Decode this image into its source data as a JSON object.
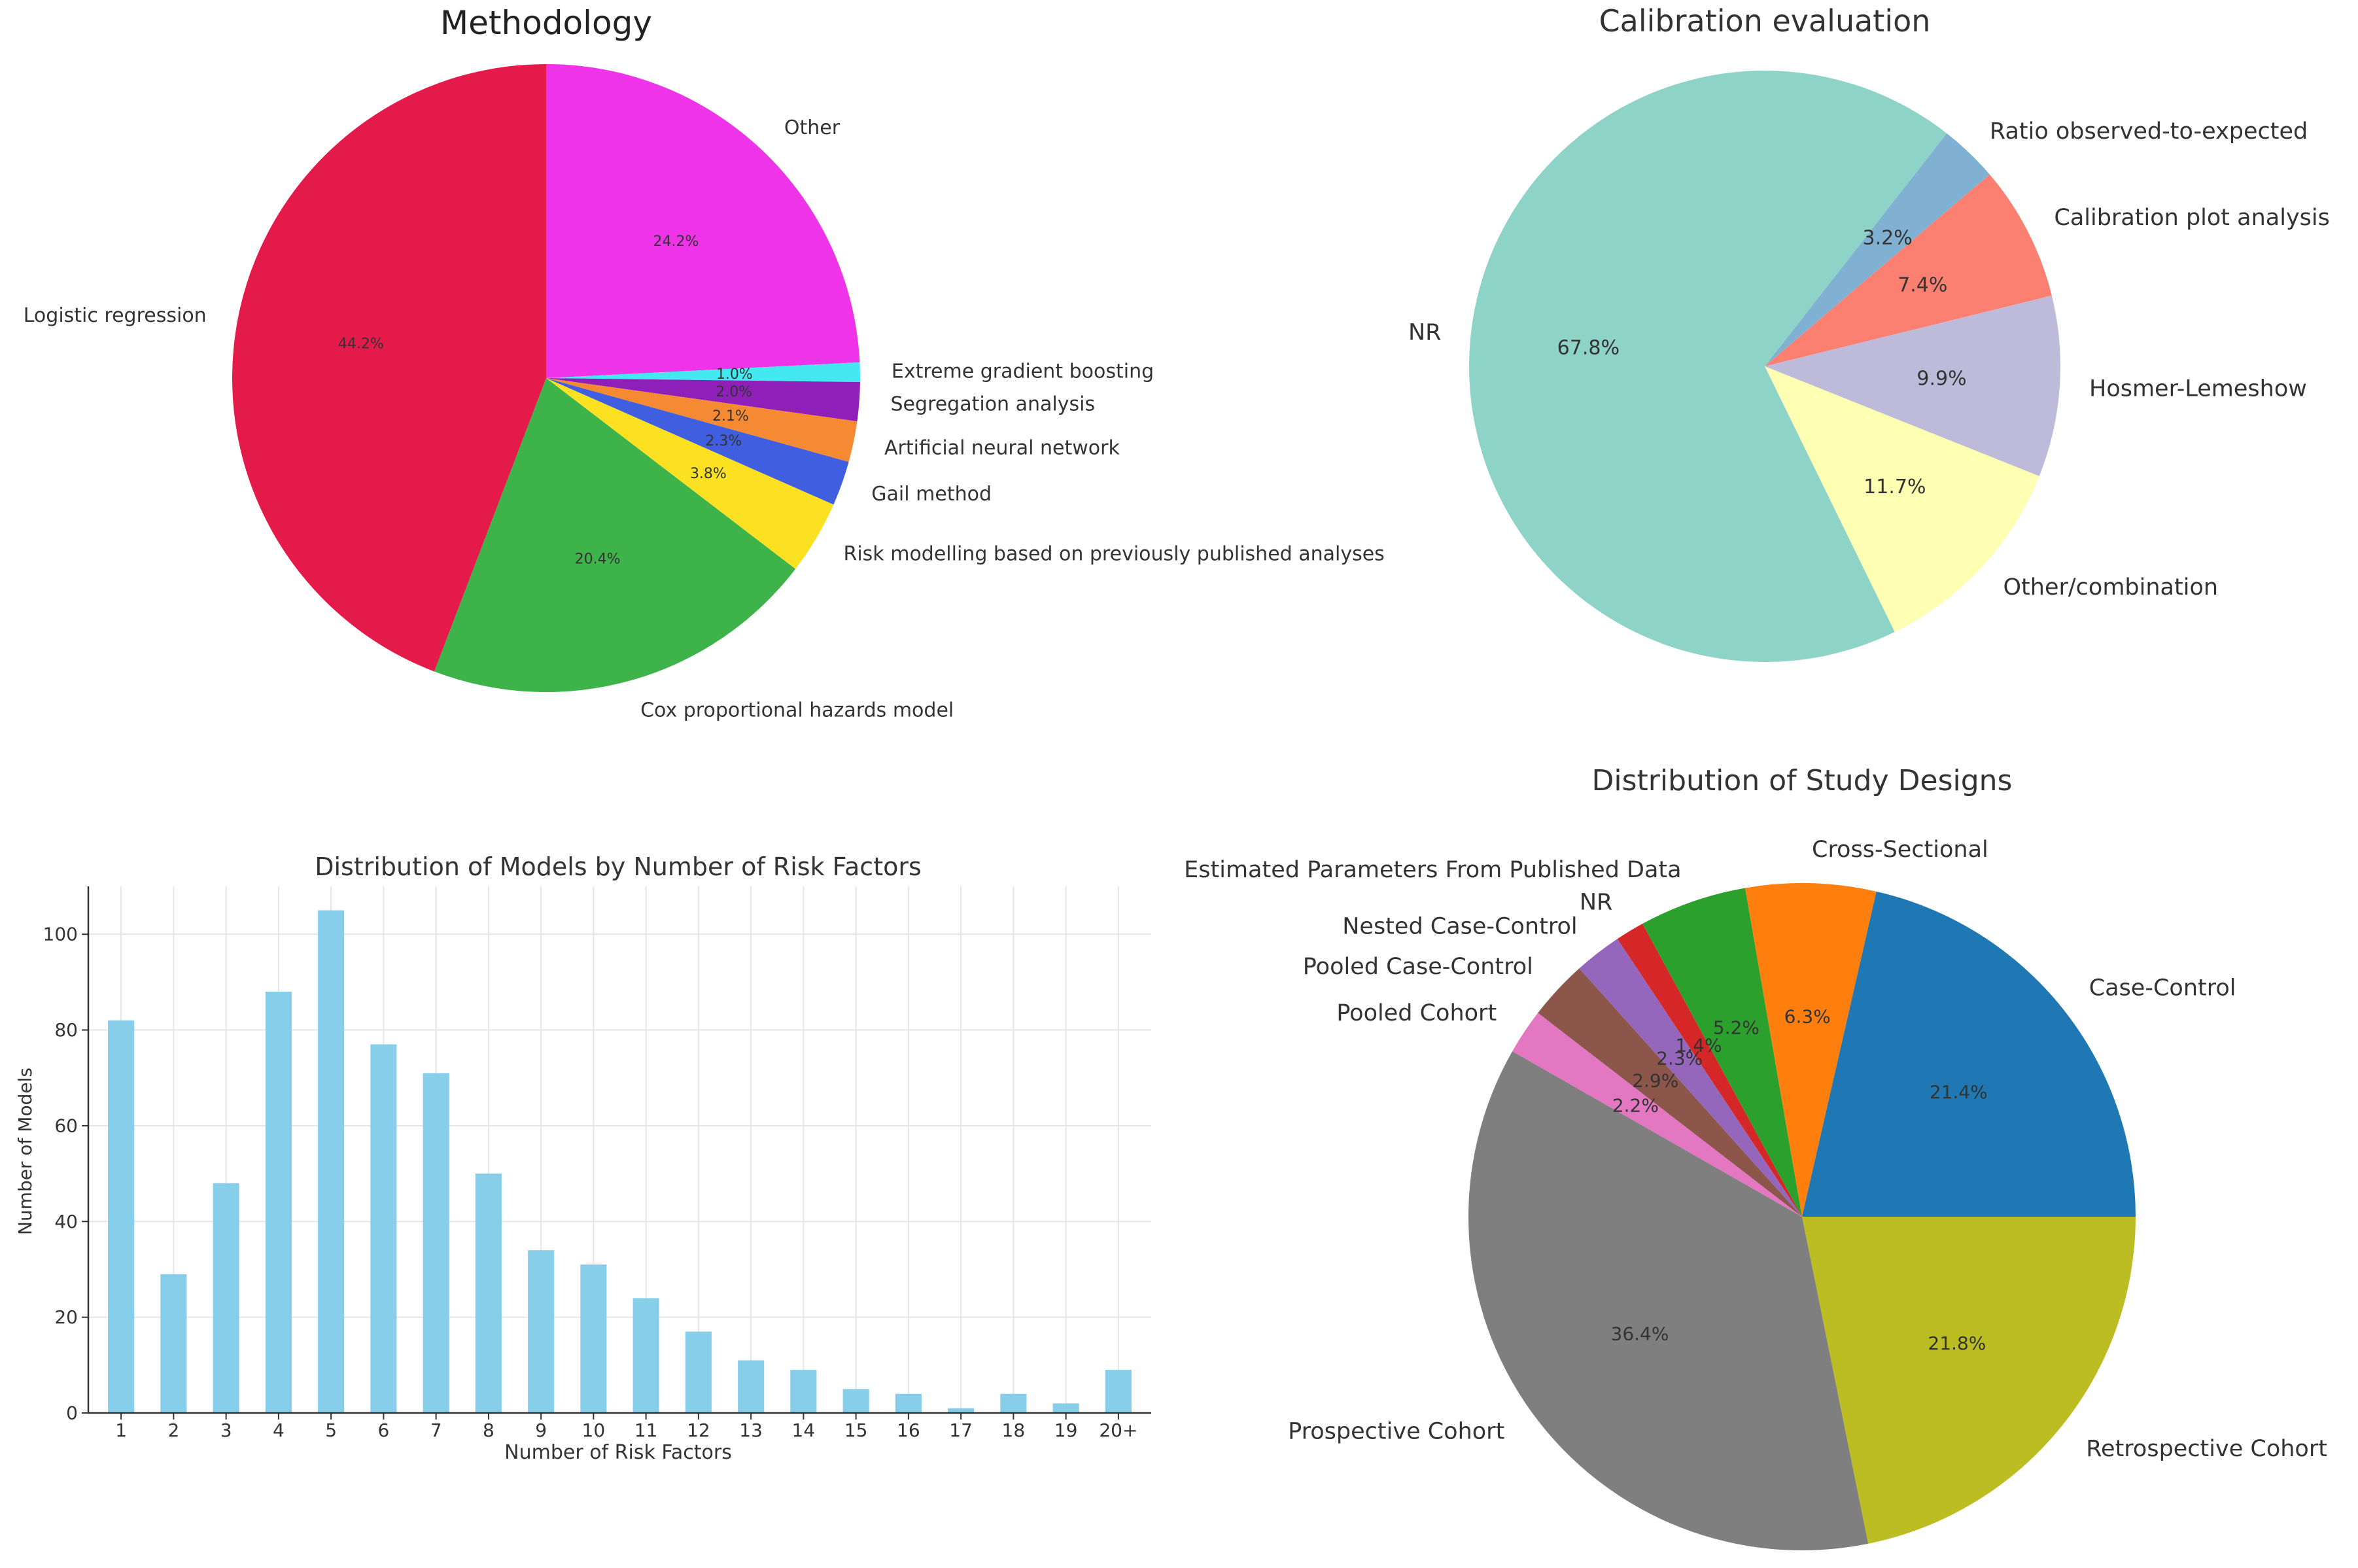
{
  "chart_data": [
    {
      "type": "pie",
      "title": "Methodology",
      "start_angle": 90,
      "direction": "clockwise",
      "slices": [
        {
          "label": "Other",
          "value": 24.2,
          "pct_label": "24.2%",
          "color": "#ee33e9"
        },
        {
          "label": "Extreme gradient boosting",
          "value": 1.0,
          "pct_label": "1.0%",
          "color": "#44e8f0"
        },
        {
          "label": "Segregation analysis",
          "value": 2.0,
          "pct_label": "2.0%",
          "color": "#8e1fb8"
        },
        {
          "label": "Artificial neural network",
          "value": 2.1,
          "pct_label": "2.1%",
          "color": "#f68a33"
        },
        {
          "label": "Gail method",
          "value": 2.3,
          "pct_label": "2.3%",
          "color": "#3f5ee0"
        },
        {
          "label": "Risk modelling based on previously published analyses",
          "value": 3.8,
          "pct_label": "3.8%",
          "color": "#fce122"
        },
        {
          "label": "Cox proportional hazards model",
          "value": 20.4,
          "pct_label": "20.4%",
          "color": "#3db34a"
        },
        {
          "label": "Logistic regression",
          "value": 44.2,
          "pct_label": "44.2%",
          "color": "#e31a4a"
        }
      ]
    },
    {
      "type": "pie",
      "title": "Calibration evaluation",
      "start_angle": 52,
      "direction": "clockwise",
      "slices": [
        {
          "label": "Ratio observed-to-expected",
          "value": 3.2,
          "pct_label": "3.2%",
          "color": "#80b1d3"
        },
        {
          "label": "Calibration plot analysis",
          "value": 7.4,
          "pct_label": "7.4%",
          "color": "#fb8072"
        },
        {
          "label": "Hosmer-Lemeshow",
          "value": 9.9,
          "pct_label": "9.9%",
          "color": "#bebada"
        },
        {
          "label": "Other/combination",
          "value": 11.7,
          "pct_label": "11.7%",
          "color": "#ffffb3"
        },
        {
          "label": "NR",
          "value": 67.8,
          "pct_label": "67.8%",
          "color": "#8dd3c7"
        }
      ]
    },
    {
      "type": "bar",
      "title": "Distribution of Models by Number of Risk Factors",
      "xlabel": "Number of Risk Factors",
      "ylabel": "Number of Models",
      "categories": [
        "1",
        "2",
        "3",
        "4",
        "5",
        "6",
        "7",
        "8",
        "9",
        "10",
        "11",
        "12",
        "13",
        "14",
        "15",
        "16",
        "17",
        "18",
        "19",
        "20+"
      ],
      "values": [
        82,
        29,
        48,
        88,
        105,
        77,
        71,
        50,
        34,
        31,
        24,
        17,
        11,
        9,
        5,
        4,
        1,
        4,
        2,
        9
      ],
      "yticks": [
        0,
        20,
        40,
        60,
        80,
        100
      ],
      "ylim": [
        0,
        110
      ],
      "grid": true,
      "color": "#87ceeb"
    },
    {
      "type": "pie",
      "title": "Distribution of Study Designs",
      "start_angle": 0,
      "direction": "clockwise",
      "slices": [
        {
          "label": "Retrospective Cohort",
          "value": 21.8,
          "pct_label": "21.8%",
          "color": "#bcbd22"
        },
        {
          "label": "Prospective Cohort",
          "value": 36.4,
          "pct_label": "36.4%",
          "color": "#7f7f7f"
        },
        {
          "label": "Pooled Cohort",
          "value": 2.2,
          "pct_label": "2.2%",
          "color": "#e377c2"
        },
        {
          "label": "Pooled Case-Control",
          "value": 2.9,
          "pct_label": "2.9%",
          "color": "#8c564b"
        },
        {
          "label": "Nested Case-Control",
          "value": 2.3,
          "pct_label": "2.3%",
          "color": "#9467bd"
        },
        {
          "label": "NR",
          "value": 1.4,
          "pct_label": "1.4%",
          "color": "#d62728"
        },
        {
          "label": "Estimated Parameters From Published Data",
          "value": 5.2,
          "pct_label": "5.2%",
          "color": "#2ca02c"
        },
        {
          "label": "Cross-Sectional",
          "value": 6.3,
          "pct_label": "6.3%",
          "color": "#ff7f0e"
        },
        {
          "label": "Case-Control",
          "value": 21.4,
          "pct_label": "21.4%",
          "color": "#1f77b4"
        }
      ]
    }
  ]
}
